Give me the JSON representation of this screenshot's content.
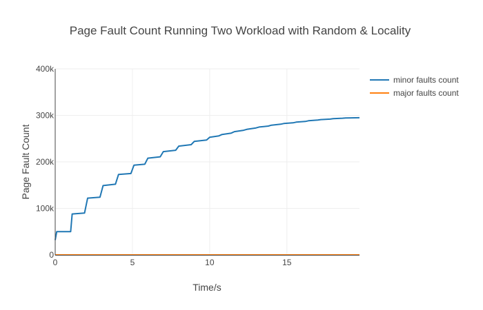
{
  "chart_data": {
    "type": "line",
    "title": "Page Fault Count Running Two Workload with Random & Locality",
    "xlabel": "Time/s",
    "ylabel": "Page Fault Count",
    "xlim": [
      0,
      19.7
    ],
    "ylim": [
      0,
      400000
    ],
    "x_ticks": [
      {
        "value": 0,
        "label": "0"
      },
      {
        "value": 5,
        "label": "5"
      },
      {
        "value": 10,
        "label": "10"
      },
      {
        "value": 15,
        "label": "15"
      }
    ],
    "y_ticks": [
      {
        "value": 0,
        "label": "0"
      },
      {
        "value": 100000,
        "label": "100k"
      },
      {
        "value": 200000,
        "label": "200k"
      },
      {
        "value": 300000,
        "label": "300k"
      },
      {
        "value": 400000,
        "label": "400k"
      }
    ],
    "grid": true,
    "legend_position": "top-right",
    "series": [
      {
        "name": "minor faults count",
        "color": "#1f77b4",
        "x": [
          0,
          0.1,
          1.0,
          1.1,
          1.9,
          2.1,
          2.9,
          3.1,
          3.9,
          4.1,
          4.9,
          5.1,
          5.8,
          6.0,
          6.8,
          7.0,
          7.8,
          8.0,
          8.8,
          9.0,
          9.8,
          10.0,
          10.6,
          10.8,
          11.4,
          11.6,
          12.2,
          12.4,
          13.0,
          13.2,
          13.8,
          14.0,
          14.6,
          14.8,
          15.4,
          15.6,
          16.2,
          16.4,
          17.0,
          17.2,
          17.8,
          18.0,
          18.6,
          18.8,
          19.7
        ],
        "y": [
          32000,
          50000,
          50000,
          88000,
          90000,
          122000,
          124000,
          149000,
          152000,
          173000,
          175000,
          193000,
          195000,
          208000,
          211000,
          222000,
          225000,
          234000,
          237000,
          244000,
          247000,
          253000,
          256000,
          259000,
          262000,
          265000,
          268000,
          270000,
          273000,
          275000,
          277000,
          279000,
          281000,
          282500,
          284000,
          285500,
          287000,
          288500,
          290000,
          291000,
          292000,
          293000,
          294000,
          294500,
          295000
        ]
      },
      {
        "name": "major faults count",
        "color": "#ff7f0e",
        "x": [
          0,
          19.7
        ],
        "y": [
          0,
          0
        ]
      }
    ]
  }
}
